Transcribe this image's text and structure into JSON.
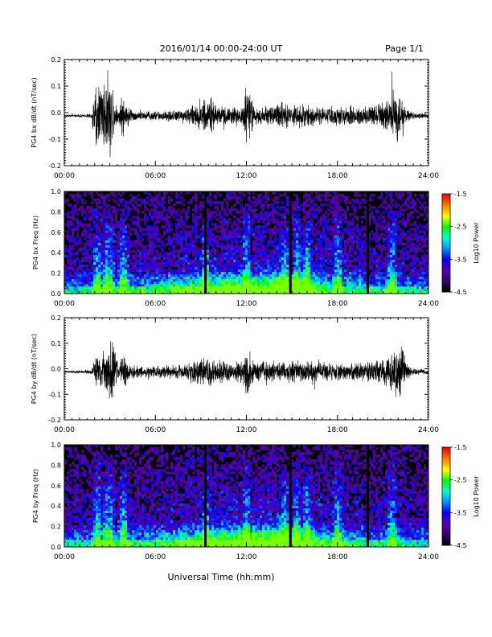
{
  "header": {
    "title": "2016/01/14  00:00-24:00 UT",
    "page": "Page 1/1"
  },
  "xlabel": "Universal Time (hh:mm)",
  "chart_data": [
    {
      "type": "line",
      "ylabel": "PG4 bx dB/dt (nT/sec)",
      "xlim": [
        0,
        24
      ],
      "ylim": [
        -0.2,
        0.2
      ],
      "x_tick_labels": [
        "00:00",
        "06:00",
        "12:00",
        "18:00",
        "24:00"
      ],
      "y_tick_labels": [
        "0.2",
        "0.1",
        "0.0",
        "-0.1",
        "-0.2"
      ],
      "color": "#000000",
      "envelope": {
        "hours": [
          0,
          1,
          1.8,
          2.0,
          2.3,
          2.6,
          3.0,
          3.2,
          3.5,
          3.9,
          4.1,
          4.5,
          5,
          6,
          7,
          8,
          9.3,
          9.6,
          10,
          11,
          11.8,
          12,
          12.5,
          13,
          14,
          14.5,
          15,
          16,
          17,
          18,
          19,
          20,
          20.5,
          21,
          21.3,
          21.6,
          22,
          22.5,
          23,
          24
        ],
        "amplitude": [
          0.005,
          0.006,
          0.01,
          0.12,
          0.16,
          0.14,
          0.2,
          0.12,
          0.03,
          0.1,
          0.05,
          0.025,
          0.02,
          0.02,
          0.025,
          0.03,
          0.07,
          0.08,
          0.045,
          0.035,
          0.05,
          0.14,
          0.045,
          0.04,
          0.05,
          0.055,
          0.05,
          0.045,
          0.035,
          0.04,
          0.04,
          0.04,
          0.05,
          0.06,
          0.07,
          0.11,
          0.1,
          0.03,
          0.015,
          0.01
        ]
      }
    },
    {
      "type": "heatmap",
      "ylabel": "PG4 bx Freq (Hz)",
      "xlim": [
        0,
        24
      ],
      "ylim": [
        0.0,
        1.0
      ],
      "x_tick_labels": [
        "00:00",
        "06:00",
        "12:00",
        "18:00",
        "24:00"
      ],
      "y_tick_labels": [
        "1.0",
        "0.8",
        "0.6",
        "0.4",
        "0.2",
        "0.0"
      ],
      "colorbar": {
        "label": "Log10 Power",
        "range": [
          -4.5,
          -1.5
        ],
        "tick_labels": [
          "-1.5",
          "-2.5",
          "-3.5",
          "-4.5"
        ]
      },
      "colors": [
        "#000000",
        "#3a0070",
        "#5a00b0",
        "#0000ff",
        "#0090ff",
        "#00ffcc",
        "#00ff00",
        "#ffff00",
        "#ff8000",
        "#ff0000"
      ],
      "bursts_hours": [
        2.2,
        2.8,
        3.0,
        3.9,
        9.3,
        12.0,
        14.5,
        15.3,
        16.0,
        18.0,
        21.6
      ],
      "gaps_hours": [
        9.3,
        14.9,
        20.0
      ]
    },
    {
      "type": "line",
      "ylabel": "PG4 by dB/dt (nT/sec)",
      "xlim": [
        0,
        24
      ],
      "ylim": [
        -0.2,
        0.2
      ],
      "x_tick_labels": [
        "00:00",
        "06:00",
        "12:00",
        "18:00",
        "24:00"
      ],
      "y_tick_labels": [
        "0.2",
        "0.1",
        "0.0",
        "-0.1",
        "-0.2"
      ],
      "color": "#000000",
      "envelope": {
        "hours": [
          0,
          1,
          1.8,
          2.0,
          2.4,
          2.8,
          3.1,
          3.4,
          3.6,
          3.9,
          4.2,
          4.6,
          5,
          6,
          7,
          8,
          9.3,
          9.6,
          10,
          11,
          11.5,
          12,
          12.5,
          13,
          14,
          15,
          16,
          17,
          18,
          19,
          20,
          20.5,
          21,
          21.4,
          21.8,
          22.2,
          22.6,
          23,
          24
        ],
        "amplitude": [
          0.005,
          0.007,
          0.01,
          0.06,
          0.09,
          0.11,
          0.16,
          0.08,
          0.03,
          0.09,
          0.04,
          0.03,
          0.025,
          0.025,
          0.03,
          0.035,
          0.06,
          0.07,
          0.055,
          0.04,
          0.045,
          0.11,
          0.05,
          0.045,
          0.05,
          0.05,
          0.045,
          0.04,
          0.04,
          0.04,
          0.045,
          0.05,
          0.06,
          0.08,
          0.1,
          0.12,
          0.04,
          0.015,
          0.01
        ]
      }
    },
    {
      "type": "heatmap",
      "ylabel": "PG4 by Freq (Hz)",
      "xlim": [
        0,
        24
      ],
      "ylim": [
        0.0,
        1.0
      ],
      "x_tick_labels": [
        "00:00",
        "06:00",
        "12:00",
        "18:00",
        "24:00"
      ],
      "y_tick_labels": [
        "1.0",
        "0.8",
        "0.6",
        "0.4",
        "0.2",
        "0.0"
      ],
      "colorbar": {
        "label": "Log10 Power",
        "range": [
          -4.5,
          -1.5
        ],
        "tick_labels": [
          "-1.5",
          "-2.5",
          "-3.5",
          "-4.5"
        ]
      },
      "colors": [
        "#000000",
        "#3a0070",
        "#5a00b0",
        "#0000ff",
        "#0090ff",
        "#00ffcc",
        "#00ff00",
        "#ffff00",
        "#ff8000",
        "#ff0000"
      ],
      "bursts_hours": [
        2.2,
        2.8,
        3.0,
        3.9,
        9.3,
        12.0,
        14.5,
        15.3,
        16.0,
        18.0,
        21.6
      ],
      "gaps_hours": [
        9.3,
        14.9,
        20.0
      ]
    }
  ]
}
